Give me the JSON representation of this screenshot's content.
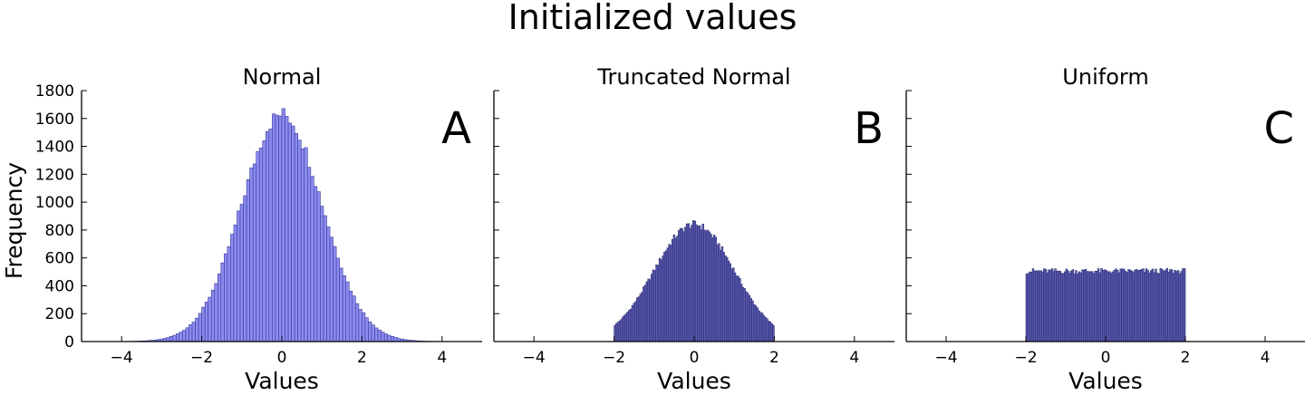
{
  "figure": {
    "title": "Initialized values"
  },
  "chart_data": [
    {
      "type": "bar",
      "title": "Normal",
      "panel_label": "A",
      "xlabel": "Values",
      "ylabel": "Frequency",
      "xlim": [
        -5,
        5
      ],
      "ylim": [
        0,
        1800
      ],
      "xticks": [
        -4,
        -2,
        0,
        2,
        4
      ],
      "xtick_labels": [
        "−4",
        "−2",
        "0",
        "2",
        "4"
      ],
      "yticks": [
        0,
        200,
        400,
        600,
        800,
        1000,
        1200,
        1400,
        1600,
        1800
      ],
      "ytick_labels": [
        "0",
        "200",
        "400",
        "600",
        "800",
        "1000",
        "1200",
        "1400",
        "1600",
        "1800"
      ],
      "bin_width": 0.08,
      "bin_range": [
        -4.4,
        4.4
      ],
      "peak": 1630,
      "center": 0,
      "spread": 1,
      "shape": "normal",
      "bar_color": "#8b8bf0",
      "edge_color": "#3a3a9a"
    },
    {
      "type": "bar",
      "title": "Truncated Normal",
      "panel_label": "B",
      "xlabel": "Values",
      "xlim": [
        -5,
        5
      ],
      "ylim": [
        0,
        1800
      ],
      "xticks": [
        -4,
        -2,
        0,
        2,
        4
      ],
      "xtick_labels": [
        "−4",
        "−2",
        "0",
        "2",
        "4"
      ],
      "bin_width": 0.04,
      "bin_range": [
        -2,
        2
      ],
      "peak": 840,
      "center": 0,
      "spread": 1,
      "shape": "truncated-normal",
      "bar_color": "#5d5db8",
      "edge_color": "#2e2e70"
    },
    {
      "type": "bar",
      "title": "Uniform",
      "panel_label": "C",
      "xlabel": "Values",
      "xlim": [
        -5,
        5
      ],
      "ylim": [
        0,
        1800
      ],
      "xticks": [
        -4,
        -2,
        0,
        2,
        4
      ],
      "xtick_labels": [
        "−4",
        "−2",
        "0",
        "2",
        "4"
      ],
      "bin_width": 0.04,
      "bin_range": [
        -2,
        2
      ],
      "level": 505,
      "shape": "uniform",
      "bar_color": "#5d5db8",
      "edge_color": "#2e2e70"
    }
  ]
}
